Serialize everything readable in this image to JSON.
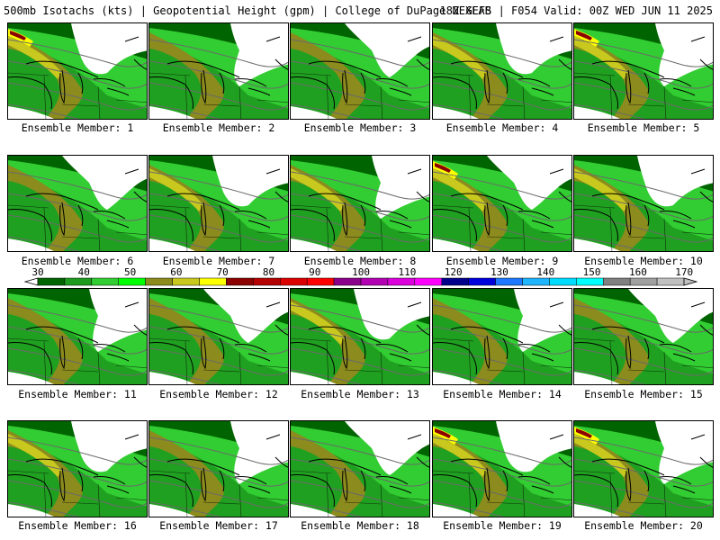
{
  "header": {
    "title_left": "500mb Isotachs (kts) | Geopotential Height (gpm) | College of DuPage NEXLAB",
    "title_right": "18Z GEFS | F054 Valid: 00Z WED JUN 11 2025"
  },
  "colorbar": {
    "tick_labels": [
      "30",
      "40",
      "50",
      "60",
      "70",
      "80",
      "90",
      "100",
      "110",
      "120",
      "130",
      "140",
      "150",
      "160",
      "170"
    ],
    "colors": [
      "#006400",
      "#1e9b1e",
      "#32cd32",
      "#00ff00",
      "#8b8b1e",
      "#c8c81e",
      "#ffff00",
      "#8b0000",
      "#b40000",
      "#dc0000",
      "#ff0000",
      "#8b008b",
      "#b400b4",
      "#dc00dc",
      "#ff00ff",
      "#00008b",
      "#0000dc",
      "#1e78ff",
      "#1eb4ff",
      "#00dcff",
      "#00ffff",
      "#808080",
      "#a0a0a0",
      "#c0c0c0"
    ]
  },
  "members": [
    {
      "caption": "Ensemble Member: 1",
      "jet_level": 3
    },
    {
      "caption": "Ensemble Member: 2",
      "jet_level": 1
    },
    {
      "caption": "Ensemble Member: 3",
      "jet_level": 1
    },
    {
      "caption": "Ensemble Member: 4",
      "jet_level": 2
    },
    {
      "caption": "Ensemble Member: 5",
      "jet_level": 3
    },
    {
      "caption": "Ensemble Member: 6",
      "jet_level": 1
    },
    {
      "caption": "Ensemble Member: 7",
      "jet_level": 2
    },
    {
      "caption": "Ensemble Member: 8",
      "jet_level": 2
    },
    {
      "caption": "Ensemble Member: 9",
      "jet_level": 3
    },
    {
      "caption": "Ensemble Member: 10",
      "jet_level": 2
    },
    {
      "caption": "Ensemble Member: 11",
      "jet_level": 1
    },
    {
      "caption": "Ensemble Member: 12",
      "jet_level": 1
    },
    {
      "caption": "Ensemble Member: 13",
      "jet_level": 2
    },
    {
      "caption": "Ensemble Member: 14",
      "jet_level": 1
    },
    {
      "caption": "Ensemble Member: 15",
      "jet_level": 1
    },
    {
      "caption": "Ensemble Member: 16",
      "jet_level": 2
    },
    {
      "caption": "Ensemble Member: 17",
      "jet_level": 1
    },
    {
      "caption": "Ensemble Member: 18",
      "jet_level": 1
    },
    {
      "caption": "Ensemble Member: 19",
      "jet_level": 3
    },
    {
      "caption": "Ensemble Member: 20",
      "jet_level": 3
    }
  ]
}
